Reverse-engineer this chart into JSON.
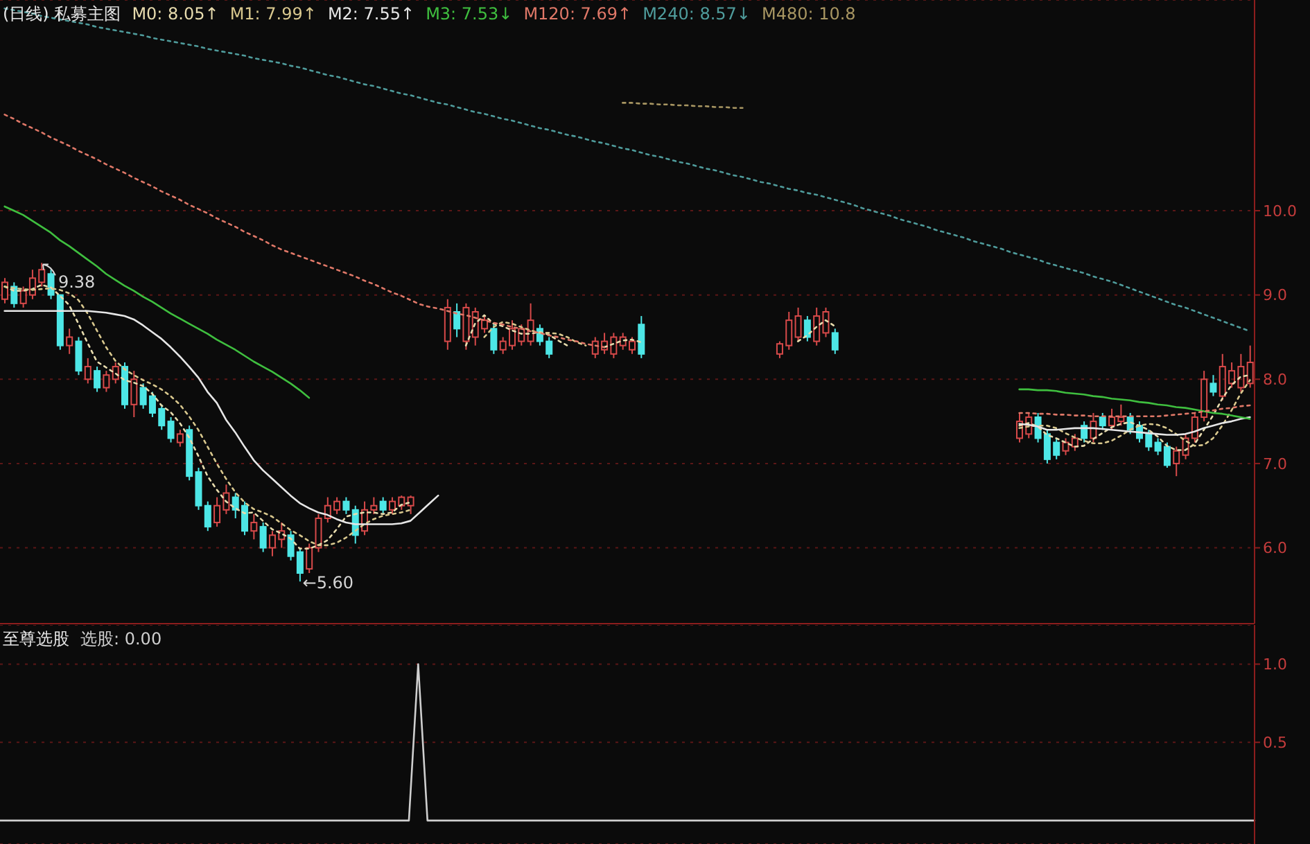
{
  "chart_data": [
    {
      "type": "candlestick",
      "title": "(日线) 私募主图",
      "legend": "top left",
      "grid": "y",
      "tick_labels": "y",
      "categories": [
        null,
        null,
        null,
        null,
        null,
        null,
        null,
        null,
        null,
        null,
        null,
        null,
        null,
        null,
        null,
        null,
        null,
        null,
        null,
        null,
        null,
        null,
        null,
        null,
        null,
        null,
        null,
        null,
        null,
        null,
        null,
        null,
        null,
        null,
        null,
        null,
        null,
        null,
        null,
        null,
        null,
        null,
        null,
        null,
        null,
        null,
        null,
        null,
        null,
        null,
        null,
        null,
        null,
        null,
        null,
        null,
        null,
        null,
        null,
        null,
        null,
        null,
        null,
        null,
        null,
        null,
        null,
        null,
        null,
        null,
        null,
        null,
        null,
        null,
        null,
        null,
        null,
        null,
        null,
        null,
        null,
        null,
        null,
        null,
        null,
        null,
        null,
        null,
        null,
        null,
        null,
        null,
        null,
        null,
        null,
        null,
        null,
        null,
        null,
        null,
        null,
        null,
        null,
        null,
        null,
        null,
        null,
        null,
        null,
        null,
        null,
        null,
        null,
        null,
        null,
        null,
        null,
        null,
        null,
        null,
        null,
        null,
        null,
        null,
        null,
        null,
        null,
        null,
        null,
        null,
        null,
        null,
        null,
        null,
        null,
        null
      ],
      "ohlc": [
        [
          8.95,
          9.2,
          8.9,
          9.15
        ],
        [
          9.1,
          9.15,
          8.85,
          8.9
        ],
        [
          8.9,
          9.1,
          8.85,
          9.05
        ],
        [
          9.0,
          9.3,
          8.95,
          9.2
        ],
        [
          9.15,
          9.38,
          9.1,
          9.3
        ],
        [
          9.25,
          9.3,
          8.95,
          9.0
        ],
        [
          9.0,
          9.0,
          8.35,
          8.4
        ],
        [
          8.4,
          8.6,
          8.3,
          8.5
        ],
        [
          8.45,
          8.5,
          8.05,
          8.1
        ],
        [
          8.0,
          8.25,
          7.95,
          8.15
        ],
        [
          8.1,
          8.15,
          7.85,
          7.9
        ],
        [
          7.9,
          8.1,
          7.85,
          8.05
        ],
        [
          8.0,
          8.2,
          7.95,
          8.15
        ],
        [
          8.15,
          8.2,
          7.65,
          7.7
        ],
        [
          7.7,
          8.1,
          7.55,
          8.0
        ],
        [
          7.9,
          7.95,
          7.65,
          7.7
        ],
        [
          7.8,
          7.85,
          7.55,
          7.6
        ],
        [
          7.65,
          7.7,
          7.4,
          7.45
        ],
        [
          7.5,
          7.55,
          7.25,
          7.3
        ],
        [
          7.25,
          7.4,
          7.2,
          7.35
        ],
        [
          7.4,
          7.45,
          6.8,
          6.85
        ],
        [
          6.9,
          6.95,
          6.45,
          6.5
        ],
        [
          6.5,
          6.55,
          6.2,
          6.25
        ],
        [
          6.3,
          6.6,
          6.25,
          6.5
        ],
        [
          6.45,
          6.75,
          6.4,
          6.65
        ],
        [
          6.6,
          6.65,
          6.35,
          6.45
        ],
        [
          6.5,
          6.55,
          6.15,
          6.2
        ],
        [
          6.2,
          6.4,
          6.1,
          6.3
        ],
        [
          6.25,
          6.3,
          5.95,
          6.0
        ],
        [
          6.0,
          6.2,
          5.9,
          6.15
        ],
        [
          6.1,
          6.3,
          6.0,
          6.2
        ],
        [
          6.15,
          6.2,
          5.85,
          5.9
        ],
        [
          5.95,
          6.0,
          5.6,
          5.7
        ],
        [
          5.75,
          6.05,
          5.7,
          6.0
        ],
        [
          6.0,
          6.4,
          5.95,
          6.35
        ],
        [
          6.35,
          6.6,
          6.3,
          6.5
        ],
        [
          6.45,
          6.6,
          6.4,
          6.55
        ],
        [
          6.55,
          6.6,
          6.4,
          6.45
        ],
        [
          6.45,
          6.5,
          6.05,
          6.15
        ],
        [
          6.2,
          6.55,
          6.15,
          6.45
        ],
        [
          6.45,
          6.6,
          6.4,
          6.5
        ],
        [
          6.55,
          6.6,
          6.4,
          6.45
        ],
        [
          6.45,
          6.6,
          6.4,
          6.55
        ],
        [
          6.5,
          6.62,
          6.45,
          6.6
        ],
        [
          6.5,
          6.62,
          6.4,
          6.6
        ],
        null,
        null,
        null,
        [
          8.45,
          8.95,
          8.35,
          8.85
        ],
        [
          8.8,
          8.9,
          8.5,
          8.6
        ],
        [
          8.45,
          8.9,
          8.35,
          8.85
        ],
        [
          8.5,
          8.85,
          8.4,
          8.8
        ],
        [
          8.6,
          8.75,
          8.55,
          8.7
        ],
        [
          8.6,
          8.65,
          8.3,
          8.35
        ],
        [
          8.35,
          8.5,
          8.3,
          8.45
        ],
        [
          8.4,
          8.7,
          8.35,
          8.6
        ],
        [
          8.45,
          8.65,
          8.4,
          8.6
        ],
        [
          8.45,
          8.9,
          8.4,
          8.7
        ],
        [
          8.6,
          8.65,
          8.4,
          8.45
        ],
        [
          8.45,
          8.5,
          8.25,
          8.3
        ],
        null,
        null,
        null,
        null,
        [
          8.3,
          8.5,
          8.25,
          8.45
        ],
        [
          8.35,
          8.55,
          8.3,
          8.45
        ],
        [
          8.3,
          8.55,
          8.25,
          8.5
        ],
        [
          8.4,
          8.55,
          8.35,
          8.5
        ],
        [
          8.35,
          8.5,
          8.3,
          8.45
        ],
        [
          8.65,
          8.75,
          8.25,
          8.3
        ],
        null,
        null,
        null,
        null,
        null,
        null,
        null,
        null,
        null,
        null,
        null,
        null,
        null,
        null,
        [
          8.3,
          8.45,
          8.25,
          8.42
        ],
        [
          8.4,
          8.8,
          8.35,
          8.7
        ],
        [
          8.5,
          8.85,
          8.45,
          8.75
        ],
        [
          8.7,
          8.75,
          8.45,
          8.5
        ],
        [
          8.45,
          8.85,
          8.4,
          8.75
        ],
        [
          8.55,
          8.85,
          8.5,
          8.8
        ],
        [
          8.55,
          8.6,
          8.3,
          8.35
        ],
        null,
        null,
        null,
        null,
        null,
        null,
        null,
        null,
        null,
        null,
        null,
        null,
        null,
        null,
        null,
        null,
        null,
        null,
        null,
        [
          7.3,
          7.6,
          7.25,
          7.5
        ],
        [
          7.35,
          7.6,
          7.3,
          7.55
        ],
        [
          7.55,
          7.6,
          7.25,
          7.3
        ],
        [
          7.35,
          7.4,
          7.0,
          7.05
        ],
        [
          7.25,
          7.3,
          7.05,
          7.1
        ],
        [
          7.15,
          7.3,
          7.1,
          7.25
        ],
        [
          7.2,
          7.35,
          7.15,
          7.3
        ],
        [
          7.45,
          7.5,
          7.25,
          7.3
        ],
        [
          7.3,
          7.6,
          7.25,
          7.5
        ],
        [
          7.55,
          7.6,
          7.4,
          7.45
        ],
        [
          7.45,
          7.65,
          7.4,
          7.55
        ],
        [
          7.5,
          7.7,
          7.45,
          7.55
        ],
        [
          7.55,
          7.6,
          7.35,
          7.4
        ],
        [
          7.45,
          7.5,
          7.25,
          7.3
        ],
        [
          7.35,
          7.4,
          7.15,
          7.2
        ],
        [
          7.25,
          7.3,
          7.1,
          7.15
        ],
        [
          7.2,
          7.25,
          6.95,
          6.98
        ],
        [
          7.0,
          7.2,
          6.85,
          7.15
        ],
        [
          7.1,
          7.35,
          7.05,
          7.3
        ],
        [
          7.3,
          7.6,
          7.25,
          7.55
        ],
        [
          7.55,
          8.1,
          7.5,
          8.0
        ],
        [
          7.95,
          8.05,
          7.8,
          7.85
        ],
        [
          7.8,
          8.3,
          7.75,
          8.15
        ],
        [
          7.95,
          8.2,
          7.9,
          8.1
        ],
        [
          7.9,
          8.3,
          7.85,
          8.15
        ],
        [
          7.95,
          8.4,
          7.9,
          8.2
        ]
      ],
      "colors": [
        "#d84a4a",
        "#4de6e6",
        "#d84a4a",
        "#d84a4a",
        "#d84a4a",
        "#4de6e6",
        "#4de6e6",
        "#d84a4a",
        "#4de6e6",
        "#d84a4a",
        "#4de6e6",
        "#d84a4a",
        "#d84a4a",
        "#4de6e6",
        "#d84a4a",
        "#4de6e6",
        "#4de6e6",
        "#4de6e6",
        "#4de6e6",
        "#d84a4a",
        "#4de6e6",
        "#4de6e6",
        "#4de6e6",
        "#d84a4a",
        "#d84a4a",
        "#4de6e6",
        "#4de6e6",
        "#d84a4a",
        "#4de6e6",
        "#d84a4a",
        "#d84a4a",
        "#4de6e6",
        "#4de6e6",
        "#d84a4a",
        "#d84a4a",
        "#d84a4a",
        "#d84a4a",
        "#4de6e6",
        "#4de6e6",
        "#d84a4a",
        "#d84a4a",
        "#4de6e6",
        "#d84a4a",
        "#d84a4a",
        "#d84a4a",
        null,
        null,
        null,
        "#d84a4a",
        "#4de6e6",
        "#d84a4a",
        "#d84a4a",
        "#d84a4a",
        "#4de6e6",
        "#d84a4a",
        "#d84a4a",
        "#d84a4a",
        "#d84a4a",
        "#4de6e6",
        "#4de6e6",
        null,
        null,
        null,
        null,
        "#d84a4a",
        "#d84a4a",
        "#d84a4a",
        "#d84a4a",
        "#d84a4a",
        "#4de6e6",
        null,
        null,
        null,
        null,
        null,
        null,
        null,
        null,
        null,
        null,
        null,
        null,
        null,
        null,
        "#d84a4a",
        "#d84a4a",
        "#d84a4a",
        "#4de6e6",
        "#d84a4a",
        "#d84a4a",
        "#4de6e6",
        null,
        null,
        null,
        null,
        null,
        null,
        null,
        null,
        null,
        null,
        null,
        null,
        null,
        null,
        null,
        null,
        null,
        null,
        null,
        "#d84a4a",
        "#d84a4a",
        "#4de6e6",
        "#4de6e6",
        "#4de6e6",
        "#d84a4a",
        "#d84a4a",
        "#4de6e6",
        "#d84a4a",
        "#4de6e6",
        "#d84a4a",
        "#d84a4a",
        "#4de6e6",
        "#4de6e6",
        "#4de6e6",
        "#4de6e6",
        "#4de6e6",
        "#d84a4a",
        "#d84a4a",
        "#d84a4a",
        "#d84a4a",
        "#4de6e6",
        "#d84a4a",
        "#d84a4a",
        "#d84a4a",
        "#d84a4a"
      ],
      "series": [
        {
          "name": "M0: 8.05↑",
          "type": "line",
          "color": "#e8dcae",
          "line_style": "dotted",
          "values": [
            9.1,
            9.05,
            9.05,
            9.07,
            9.12,
            9.09,
            8.99,
            8.88,
            8.66,
            8.43,
            8.21,
            8.14,
            8.07,
            7.99,
            7.96,
            7.92,
            7.83,
            7.69,
            7.61,
            7.48,
            7.31,
            7.09,
            6.85,
            6.69,
            6.55,
            6.47,
            6.41,
            6.42,
            6.32,
            6.22,
            6.17,
            6.11,
            5.99,
            5.99,
            6.03,
            6.09,
            6.22,
            6.37,
            6.4,
            6.42,
            6.42,
            6.4,
            6.42,
            6.51,
            6.54,
            null,
            null,
            null,
            null,
            null,
            8.4,
            8.66,
            8.76,
            8.66,
            8.63,
            8.58,
            8.54,
            8.54,
            8.56,
            8.53,
            8.46,
            8.4,
            null,
            null,
            null,
            8.38,
            8.42,
            8.46,
            8.47,
            8.44,
            null,
            null,
            null,
            null,
            null,
            null,
            null,
            null,
            null,
            null,
            null,
            null,
            null,
            null,
            null,
            null,
            8.45,
            8.52,
            8.62,
            8.7,
            8.63,
            null,
            null,
            null,
            null,
            null,
            null,
            null,
            null,
            null,
            null,
            null,
            null,
            null,
            null,
            null,
            null,
            null,
            null,
            null,
            7.45,
            7.48,
            7.44,
            7.34,
            7.3,
            7.25,
            7.2,
            7.21,
            7.29,
            7.36,
            7.43,
            7.47,
            7.49,
            7.45,
            7.4,
            7.32,
            7.21,
            7.16,
            7.16,
            7.23,
            7.4,
            7.57,
            7.77,
            7.93,
            8.03,
            8.05
          ]
        },
        {
          "name": "M1: 7.99↑",
          "type": "line",
          "color": "#d9c88e",
          "line_style": "dotted",
          "values": [
            9.1,
            9.08,
            9.07,
            9.06,
            9.07,
            9.08,
            9.06,
            9.02,
            8.94,
            8.78,
            8.58,
            8.38,
            8.22,
            8.12,
            8.05,
            7.99,
            7.94,
            7.88,
            7.8,
            7.7,
            7.56,
            7.4,
            7.2,
            7.0,
            6.82,
            6.66,
            6.54,
            6.46,
            6.42,
            6.37,
            6.29,
            6.21,
            6.15,
            6.08,
            6.03,
            6.03,
            6.06,
            6.12,
            6.2,
            6.28,
            6.34,
            6.38,
            6.4,
            6.42,
            6.45,
            null,
            null,
            null,
            null,
            null,
            null,
            null,
            8.5,
            8.62,
            8.68,
            8.66,
            8.62,
            8.58,
            8.55,
            8.55,
            8.54,
            8.5,
            8.44,
            8.4,
            null,
            null,
            null,
            null,
            null,
            null,
            null,
            null,
            null,
            null,
            null,
            null,
            null,
            null,
            null,
            null,
            null,
            null,
            null,
            null,
            null,
            null,
            null,
            null,
            null,
            null,
            null,
            null,
            null,
            null,
            null,
            null,
            null,
            null,
            null,
            null,
            null,
            null,
            null,
            null,
            null,
            null,
            null,
            null,
            null,
            null,
            7.42,
            7.44,
            7.45,
            7.45,
            7.42,
            7.36,
            7.31,
            7.27,
            7.24,
            7.24,
            7.27,
            7.33,
            7.4,
            7.45,
            7.47,
            7.46,
            7.42,
            7.35,
            7.27,
            7.21,
            7.22,
            7.3,
            7.45,
            7.63,
            7.83,
            7.99
          ]
        },
        {
          "name": "M2: 7.55↑",
          "type": "line",
          "color": "#e6e6e6",
          "line_style": "solid",
          "values": [
            8.81,
            8.81,
            8.81,
            8.81,
            8.81,
            8.81,
            8.81,
            8.81,
            8.81,
            8.81,
            8.8,
            8.79,
            8.77,
            8.75,
            8.71,
            8.64,
            8.56,
            8.48,
            8.38,
            8.27,
            8.15,
            8.02,
            7.85,
            7.72,
            7.52,
            7.37,
            7.2,
            7.04,
            6.92,
            6.82,
            6.72,
            6.62,
            6.53,
            6.47,
            6.42,
            6.39,
            6.34,
            6.3,
            6.28,
            6.28,
            6.28,
            6.28,
            6.28,
            6.29,
            6.32,
            6.42,
            6.52,
            6.62,
            null,
            null,
            null,
            null,
            null,
            null,
            null,
            null,
            null,
            null,
            null,
            null,
            null,
            null,
            null,
            null,
            null,
            null,
            null,
            null,
            null,
            null,
            null,
            null,
            null,
            null,
            null,
            null,
            null,
            null,
            null,
            null,
            null,
            null,
            null,
            null,
            null,
            null,
            null,
            null,
            null,
            null,
            null,
            null,
            null,
            null,
            null,
            null,
            null,
            null,
            null,
            null,
            null,
            null,
            null,
            null,
            null,
            null,
            null,
            null,
            null,
            null,
            7.47,
            7.46,
            7.44,
            7.4,
            7.4,
            7.41,
            7.42,
            7.42,
            7.42,
            7.41,
            7.4,
            7.39,
            7.38,
            7.37,
            7.36,
            7.35,
            7.34,
            7.34,
            7.35,
            7.38,
            7.42,
            7.45,
            7.48,
            7.5,
            7.53,
            7.55
          ]
        },
        {
          "name": "M3: 7.53↓",
          "type": "line",
          "color": "#3fbf3f",
          "line_style": "solid",
          "values": [
            10.05,
            10.0,
            9.95,
            9.88,
            9.81,
            9.74,
            9.65,
            9.58,
            9.5,
            9.42,
            9.34,
            9.25,
            9.18,
            9.11,
            9.05,
            8.98,
            8.92,
            8.85,
            8.78,
            8.72,
            8.66,
            8.6,
            8.54,
            8.47,
            8.41,
            8.35,
            8.28,
            8.21,
            8.15,
            8.09,
            8.02,
            7.95,
            7.87,
            7.78,
            null,
            null,
            null,
            null,
            null,
            null,
            null,
            null,
            null,
            null,
            null,
            null,
            null,
            null,
            null,
            null,
            null,
            null,
            null,
            null,
            null,
            null,
            null,
            null,
            null,
            null,
            null,
            null,
            null,
            null,
            null,
            null,
            null,
            null,
            null,
            null,
            null,
            null,
            null,
            null,
            null,
            null,
            null,
            null,
            null,
            null,
            null,
            null,
            null,
            null,
            null,
            null,
            null,
            null,
            null,
            null,
            null,
            null,
            null,
            null,
            null,
            null,
            null,
            null,
            null,
            null,
            null,
            null,
            null,
            null,
            null,
            null,
            null,
            null,
            null,
            null,
            7.88,
            7.88,
            7.87,
            7.87,
            7.86,
            7.84,
            7.83,
            7.82,
            7.8,
            7.79,
            7.77,
            7.76,
            7.75,
            7.73,
            7.72,
            7.7,
            7.69,
            7.67,
            7.66,
            7.64,
            7.62,
            7.6,
            7.59,
            7.57,
            7.55,
            7.53
          ]
        },
        {
          "name": "M120: 7.69↑",
          "type": "line",
          "color": "#e07868",
          "line_style": "dotted",
          "values": [
            11.14,
            11.09,
            11.03,
            10.98,
            10.93,
            10.87,
            10.82,
            10.77,
            10.71,
            10.66,
            10.61,
            10.55,
            10.5,
            10.45,
            10.39,
            10.34,
            10.29,
            10.23,
            10.18,
            10.13,
            10.07,
            10.02,
            9.97,
            9.91,
            9.86,
            9.81,
            9.75,
            9.7,
            9.65,
            9.59,
            9.54,
            9.5,
            9.46,
            9.42,
            9.38,
            9.34,
            9.3,
            9.26,
            9.22,
            9.17,
            9.13,
            9.08,
            9.03,
            8.99,
            8.94,
            8.89,
            8.86,
            8.84,
            8.81,
            8.78,
            8.76,
            8.73,
            8.7,
            8.67,
            8.65,
            8.62,
            8.6,
            8.57,
            8.55,
            8.52,
            8.5,
            8.47,
            8.45,
            8.42,
            8.4,
            8.38,
            null,
            null,
            null,
            null,
            null,
            null,
            null,
            null,
            null,
            null,
            null,
            null,
            null,
            null,
            null,
            null,
            null,
            null,
            null,
            null,
            null,
            null,
            null,
            null,
            null,
            null,
            null,
            null,
            null,
            null,
            null,
            null,
            null,
            null,
            null,
            null,
            null,
            null,
            null,
            null,
            null,
            null,
            null,
            null,
            7.6,
            7.6,
            7.59,
            7.59,
            7.58,
            7.58,
            7.57,
            7.57,
            7.56,
            7.56,
            7.56,
            7.56,
            7.56,
            7.56,
            7.56,
            7.56,
            7.57,
            7.58,
            7.59,
            7.6,
            7.62,
            7.63,
            7.65,
            7.66,
            7.68,
            7.69
          ]
        },
        {
          "name": "M240: 8.57↓",
          "type": "line",
          "color": "#4f9c9c",
          "line_style": "dotted",
          "values": [
            12.4,
            12.38,
            12.36,
            12.34,
            12.31,
            12.29,
            12.27,
            12.25,
            12.23,
            12.21,
            12.18,
            12.16,
            12.14,
            12.12,
            12.1,
            12.08,
            12.05,
            12.03,
            12.01,
            11.99,
            11.97,
            11.95,
            11.92,
            11.9,
            11.88,
            11.86,
            11.84,
            11.81,
            11.79,
            11.77,
            11.75,
            11.72,
            11.7,
            11.67,
            11.64,
            11.61,
            11.59,
            11.56,
            11.53,
            11.5,
            11.48,
            11.45,
            11.42,
            11.39,
            11.37,
            11.34,
            11.31,
            11.28,
            11.26,
            11.23,
            11.2,
            11.17,
            11.15,
            11.12,
            11.09,
            11.07,
            11.04,
            11.01,
            10.98,
            10.96,
            10.93,
            10.9,
            10.88,
            10.85,
            10.82,
            10.8,
            10.77,
            10.74,
            10.72,
            10.69,
            10.66,
            10.64,
            10.61,
            10.58,
            10.56,
            10.53,
            10.5,
            10.48,
            10.45,
            10.42,
            10.4,
            10.37,
            10.34,
            10.32,
            10.29,
            10.26,
            10.24,
            10.21,
            10.19,
            10.16,
            10.13,
            10.1,
            10.07,
            10.03,
            10.0,
            9.97,
            9.94,
            9.9,
            9.87,
            9.84,
            9.81,
            9.77,
            9.74,
            9.71,
            9.68,
            9.64,
            9.61,
            9.58,
            9.55,
            9.51,
            9.48,
            9.45,
            9.42,
            9.38,
            9.35,
            9.32,
            9.29,
            9.26,
            9.22,
            9.19,
            9.16,
            9.12,
            9.08,
            9.04,
            9.0,
            8.96,
            8.92,
            8.88,
            8.85,
            8.81,
            8.77,
            8.73,
            8.69,
            8.65,
            8.61,
            8.57
          ]
        },
        {
          "name": "M480: 10.8",
          "type": "line",
          "color": "#a89662",
          "line_style": "dotted",
          "values": [
            null,
            null,
            null,
            null,
            null,
            null,
            null,
            null,
            null,
            null,
            null,
            null,
            null,
            null,
            null,
            null,
            null,
            null,
            null,
            null,
            null,
            null,
            null,
            null,
            null,
            null,
            null,
            null,
            null,
            null,
            null,
            null,
            null,
            null,
            null,
            null,
            null,
            null,
            null,
            null,
            null,
            null,
            null,
            null,
            null,
            null,
            null,
            null,
            null,
            null,
            null,
            null,
            null,
            null,
            null,
            null,
            null,
            null,
            null,
            null,
            null,
            null,
            null,
            null,
            null,
            null,
            null,
            11.28,
            11.28,
            11.27,
            11.27,
            11.26,
            11.26,
            11.25,
            11.25,
            11.24,
            11.24,
            11.23,
            11.23,
            11.22,
            11.22,
            null,
            null,
            null,
            null,
            null,
            null,
            null,
            null,
            null,
            null,
            null,
            null,
            null,
            null,
            null,
            null,
            null,
            null,
            null,
            null,
            null,
            null,
            null,
            null,
            null,
            null,
            null,
            null,
            null,
            null,
            null,
            null,
            null,
            null,
            null,
            null,
            null,
            null,
            null,
            null,
            null,
            null,
            null,
            null,
            null,
            null,
            null,
            null,
            null,
            null,
            null,
            null,
            null,
            null,
            null
          ]
        }
      ],
      "ylim": [
        5.1,
        12.5
      ],
      "yticks": [
        {
          "value": 6,
          "label": "6.0"
        },
        {
          "value": 7,
          "label": "7.0"
        },
        {
          "value": 8,
          "label": "8.0"
        },
        {
          "value": 9,
          "label": "9.0"
        },
        {
          "value": 10,
          "label": "10.0"
        }
      ],
      "annotations": [
        "9.38",
        "←5.60"
      ]
    },
    {
      "type": "line",
      "title": "至尊选股",
      "legend": "top left",
      "grid": "y",
      "tick_labels": "y",
      "categories": [
        null,
        null,
        null,
        null,
        null,
        null,
        null,
        null,
        null,
        null,
        null,
        null,
        null,
        null,
        null,
        null,
        null,
        null,
        null,
        null,
        null,
        null,
        null,
        null,
        null,
        null,
        null,
        null,
        null,
        null,
        null,
        null,
        null,
        null,
        null,
        null,
        null,
        null,
        null,
        null,
        null,
        null,
        null,
        null,
        null,
        null,
        null,
        null,
        null,
        null,
        null,
        null,
        null,
        null,
        null,
        null,
        null,
        null,
        null,
        null,
        null,
        null,
        null,
        null,
        null,
        null,
        null,
        null,
        null,
        null,
        null,
        null,
        null,
        null,
        null,
        null,
        null,
        null,
        null,
        null,
        null,
        null,
        null,
        null,
        null,
        null,
        null,
        null,
        null,
        null,
        null,
        null,
        null,
        null,
        null,
        null,
        null,
        null,
        null,
        null,
        null,
        null,
        null,
        null,
        null,
        null,
        null,
        null,
        null,
        null,
        null,
        null,
        null,
        null,
        null,
        null,
        null,
        null,
        null,
        null,
        null,
        null,
        null,
        null,
        null,
        null,
        null,
        null,
        null,
        null,
        null,
        null,
        null,
        null,
        null,
        null
      ],
      "series": [
        {
          "name": "选股: 0.00",
          "color": "#cfcfcf",
          "values": [
            0,
            0,
            0,
            0,
            0,
            0,
            0,
            0,
            0,
            0,
            0,
            0,
            0,
            0,
            0,
            0,
            0,
            0,
            0,
            0,
            0,
            0,
            0,
            0,
            0,
            0,
            0,
            0,
            0,
            0,
            0,
            0,
            0,
            0,
            0,
            0,
            0,
            0,
            0,
            0,
            0,
            0,
            0,
            0,
            0,
            1,
            0,
            0,
            0,
            0,
            0,
            0,
            0,
            0,
            0,
            0,
            0,
            0,
            0,
            0,
            0,
            0,
            0,
            0,
            0,
            0,
            0,
            0,
            0,
            0,
            0,
            0,
            0,
            0,
            0,
            0,
            0,
            0,
            0,
            0,
            0,
            0,
            0,
            0,
            0,
            0,
            0,
            0,
            0,
            0,
            0,
            0,
            0,
            0,
            0,
            0,
            0,
            0,
            0,
            0,
            0,
            0,
            0,
            0,
            0,
            0,
            0,
            0,
            0,
            0,
            0,
            0,
            0,
            0,
            0,
            0,
            0,
            0,
            0,
            0,
            0,
            0,
            0,
            0,
            0,
            0,
            0,
            0,
            0,
            0,
            0,
            0,
            0,
            0,
            0,
            0
          ]
        }
      ],
      "ylim": [
        -0.15,
        1.25
      ],
      "yticks": [
        {
          "value": 0.5,
          "label": "0.5"
        },
        {
          "value": 1,
          "label": "1.0"
        }
      ]
    }
  ]
}
